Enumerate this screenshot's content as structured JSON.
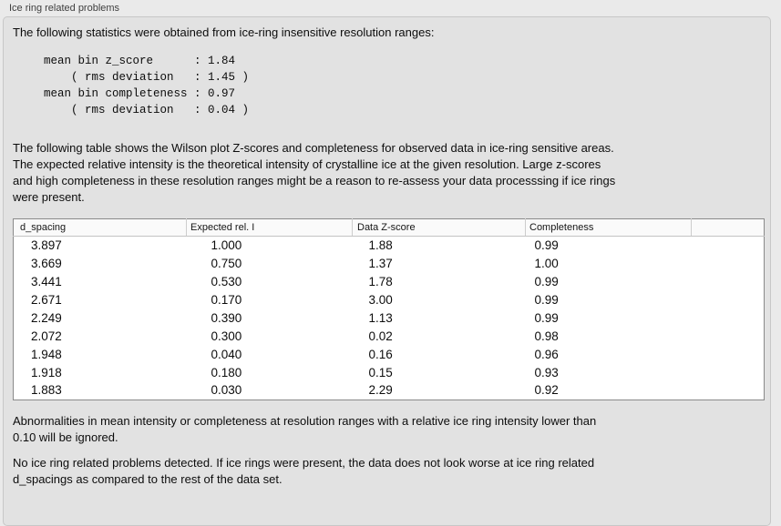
{
  "panel": {
    "title": "Ice ring related problems"
  },
  "intro": "The following statistics were obtained from ice-ring insensitive resolution ranges:",
  "stats_block": "mean bin z_score      : 1.84\n    ( rms deviation   : 1.45 )\nmean bin completeness : 0.97\n    ( rms deviation   : 0.04 )",
  "stats": {
    "mean_bin_z_score": "1.84",
    "z_score_rms_deviation": "1.45",
    "mean_bin_completeness": "0.97",
    "completeness_rms_deviation": "0.04"
  },
  "description": "The following table shows the Wilson plot Z-scores and completeness for observed data in ice-ring sensitive areas.\nThe expected relative intensity is the theoretical intensity of crystalline ice at the given resolution. Large z-scores\nand high completeness in these resolution ranges might be a reason to re-assess your data processsing if ice rings\nwere present.",
  "table": {
    "columns": [
      "d_spacing",
      "Expected rel. I",
      "Data Z-score",
      "Completeness"
    ],
    "rows": [
      [
        "3.897",
        "1.000",
        "1.88",
        "0.99"
      ],
      [
        "3.669",
        "0.750",
        "1.37",
        "1.00"
      ],
      [
        "3.441",
        "0.530",
        "1.78",
        "0.99"
      ],
      [
        "2.671",
        "0.170",
        "3.00",
        "0.99"
      ],
      [
        "2.249",
        "0.390",
        "1.13",
        "0.99"
      ],
      [
        "2.072",
        "0.300",
        "0.02",
        "0.98"
      ],
      [
        "1.948",
        "0.040",
        "0.16",
        "0.96"
      ],
      [
        "1.918",
        "0.180",
        "0.15",
        "0.93"
      ],
      [
        "1.883",
        "0.030",
        "2.29",
        "0.92"
      ]
    ]
  },
  "note_ignore": "Abnormalities in mean intensity or completeness at resolution ranges with a relative ice ring intensity lower than\n0.10 will be ignored.",
  "conclusion": "No ice ring related problems detected. If ice rings were present, the data does not look worse at ice ring related\nd_spacings as compared to the rest of the data set.",
  "colors": {
    "panel_background": "#e2e2e2",
    "window_background": "#eaeaea",
    "table_background": "#ffffff",
    "table_border": "#8a8a8a",
    "text": "#0c0c0c"
  }
}
